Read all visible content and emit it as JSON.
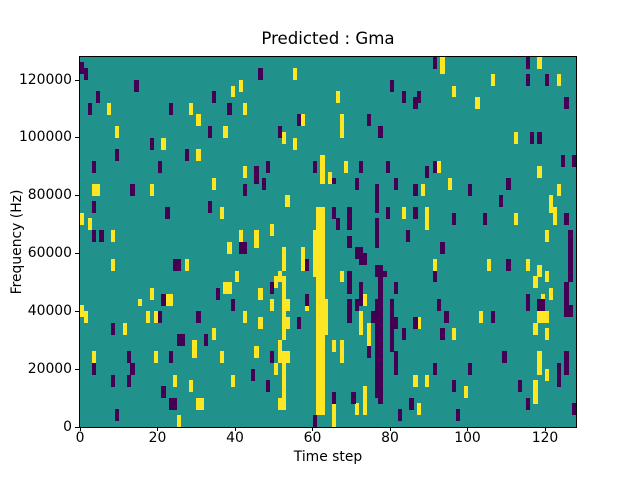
{
  "chart_data": {
    "type": "heatmap",
    "title": "Predicted : Gma",
    "xlabel": "Time step",
    "ylabel": "Frequency (Hz)",
    "xlim": [
      0,
      128
    ],
    "ylim": [
      0,
      128000
    ],
    "grid": {
      "cols": 128,
      "rows": 64,
      "hz_per_row": 2000
    },
    "x_ticks": {
      "values": [
        0,
        20,
        40,
        60,
        80,
        100,
        120
      ],
      "labels": [
        "0",
        "20",
        "40",
        "60",
        "80",
        "100",
        "120"
      ]
    },
    "y_ticks": {
      "values": [
        0,
        20000,
        40000,
        60000,
        80000,
        100000,
        120000
      ],
      "labels": [
        "0",
        "20000",
        "40000",
        "60000",
        "80000",
        "100000",
        "120000"
      ]
    },
    "legend_position": "none",
    "colormap": {
      "name": "viridis",
      "mid_background": "#21918c",
      "high": "#fde725",
      "low": "#440154"
    },
    "cell_runs": {
      "yellow": [
        [
          7,
          54,
          55
        ],
        [
          28,
          54,
          55
        ],
        [
          9,
          50,
          51
        ],
        [
          21,
          48,
          49
        ],
        [
          30,
          46,
          47
        ],
        [
          30,
          52,
          53
        ],
        [
          37,
          50,
          51
        ],
        [
          39,
          57,
          58
        ],
        [
          41,
          58,
          59
        ],
        [
          42,
          43,
          44
        ],
        [
          42,
          54,
          55
        ],
        [
          3,
          40,
          41
        ],
        [
          4,
          40,
          41
        ],
        [
          2,
          34,
          35
        ],
        [
          8,
          32,
          33
        ],
        [
          18,
          40,
          41
        ],
        [
          34,
          41,
          42
        ],
        [
          36,
          36,
          37
        ],
        [
          41,
          32,
          33
        ],
        [
          45,
          31,
          33
        ],
        [
          38,
          30,
          31
        ],
        [
          8,
          27,
          28
        ],
        [
          27,
          27,
          28
        ],
        [
          40,
          25,
          26
        ],
        [
          18,
          22,
          23
        ],
        [
          37,
          23,
          24
        ],
        [
          38,
          23,
          24
        ],
        [
          22,
          21,
          22
        ],
        [
          23,
          21,
          22
        ],
        [
          15,
          21,
          21
        ],
        [
          50,
          24,
          25
        ],
        [
          49,
          33,
          34
        ],
        [
          46,
          22,
          23
        ],
        [
          0,
          35,
          36
        ],
        [
          1,
          18,
          19
        ],
        [
          17,
          18,
          19
        ],
        [
          19,
          18,
          19
        ],
        [
          42,
          18,
          19
        ],
        [
          46,
          17,
          18
        ],
        [
          11,
          16,
          17
        ],
        [
          29,
          12,
          14
        ],
        [
          34,
          15,
          16
        ],
        [
          3,
          11,
          12
        ],
        [
          19,
          11,
          12
        ],
        [
          36,
          11,
          12
        ],
        [
          50,
          9,
          10
        ],
        [
          24,
          7,
          8
        ],
        [
          39,
          7,
          8
        ],
        [
          28,
          6,
          7
        ],
        [
          30,
          3,
          4
        ],
        [
          31,
          3,
          4
        ],
        [
          25,
          0,
          1
        ],
        [
          0,
          19,
          20
        ],
        [
          49,
          20,
          21
        ],
        [
          45,
          12,
          13
        ],
        [
          51,
          3,
          4
        ],
        [
          51,
          11,
          14
        ],
        [
          51,
          25,
          26
        ],
        [
          55,
          60,
          61
        ],
        [
          66,
          56,
          57
        ],
        [
          93,
          62,
          63
        ],
        [
          57,
          52,
          53
        ],
        [
          67,
          50,
          53
        ],
        [
          55,
          48,
          49
        ],
        [
          52,
          49,
          50
        ],
        [
          64,
          42,
          43
        ],
        [
          68,
          44,
          45
        ],
        [
          92,
          44,
          45
        ],
        [
          53,
          38,
          39
        ],
        [
          88,
          40,
          41
        ],
        [
          83,
          36,
          37
        ],
        [
          89,
          34,
          37
        ],
        [
          57,
          27,
          30
        ],
        [
          52,
          27,
          30
        ],
        [
          67,
          25,
          26
        ],
        [
          91,
          27,
          28
        ],
        [
          73,
          21,
          22
        ],
        [
          52,
          21,
          25
        ],
        [
          61,
          2,
          37
        ],
        [
          62,
          2,
          37
        ],
        [
          62,
          42,
          46
        ],
        [
          60,
          26,
          33
        ],
        [
          63,
          16,
          21
        ],
        [
          52,
          15,
          21
        ],
        [
          52,
          9,
          12
        ],
        [
          52,
          5,
          8
        ],
        [
          52,
          3,
          4
        ],
        [
          53,
          20,
          21
        ],
        [
          53,
          17,
          18
        ],
        [
          53,
          11,
          12
        ],
        [
          58,
          20,
          21
        ],
        [
          72,
          16,
          19
        ],
        [
          74,
          14,
          17
        ],
        [
          67,
          11,
          14
        ],
        [
          65,
          13,
          14
        ],
        [
          65,
          0,
          3
        ],
        [
          73,
          2,
          6
        ],
        [
          71,
          2,
          3
        ],
        [
          87,
          17,
          18
        ],
        [
          86,
          7,
          8
        ],
        [
          89,
          7,
          8
        ],
        [
          87,
          2,
          3
        ],
        [
          118,
          62,
          63
        ],
        [
          93,
          61,
          62
        ],
        [
          123,
          59,
          60
        ],
        [
          106,
          59,
          60
        ],
        [
          96,
          57,
          58
        ],
        [
          102,
          55,
          56
        ],
        [
          112,
          49,
          50
        ],
        [
          118,
          43,
          44
        ],
        [
          95,
          41,
          42
        ],
        [
          123,
          40,
          41
        ],
        [
          121,
          37,
          39
        ],
        [
          122,
          35,
          37
        ],
        [
          112,
          35,
          36
        ],
        [
          120,
          32,
          33
        ],
        [
          105,
          27,
          28
        ],
        [
          115,
          27,
          28
        ],
        [
          118,
          26,
          27
        ],
        [
          120,
          25,
          26
        ],
        [
          117,
          24,
          25
        ],
        [
          119,
          21,
          22
        ],
        [
          121,
          22,
          23
        ],
        [
          118,
          18,
          19
        ],
        [
          119,
          18,
          19
        ],
        [
          120,
          18,
          19
        ],
        [
          103,
          18,
          19
        ],
        [
          117,
          16,
          17
        ],
        [
          120,
          15,
          16
        ],
        [
          96,
          15,
          16
        ],
        [
          118,
          9,
          12
        ],
        [
          120,
          8,
          9
        ],
        [
          99,
          5,
          6
        ],
        [
          117,
          4,
          7
        ]
      ],
      "purple": [
        [
          0,
          61,
          62
        ],
        [
          1,
          60,
          61
        ],
        [
          14,
          58,
          59
        ],
        [
          4,
          56,
          57
        ],
        [
          2,
          54,
          55
        ],
        [
          23,
          54,
          55
        ],
        [
          34,
          56,
          57
        ],
        [
          38,
          54,
          55
        ],
        [
          33,
          50,
          51
        ],
        [
          18,
          48,
          49
        ],
        [
          9,
          46,
          47
        ],
        [
          27,
          46,
          47
        ],
        [
          3,
          44,
          45
        ],
        [
          20,
          44,
          45
        ],
        [
          46,
          60,
          61
        ],
        [
          3,
          37,
          38
        ],
        [
          13,
          40,
          41
        ],
        [
          42,
          40,
          41
        ],
        [
          33,
          37,
          38
        ],
        [
          22,
          36,
          37
        ],
        [
          3,
          32,
          33
        ],
        [
          5,
          32,
          33
        ],
        [
          41,
          30,
          31
        ],
        [
          42,
          30,
          31
        ],
        [
          24,
          27,
          28
        ],
        [
          25,
          27,
          28
        ],
        [
          35,
          22,
          23
        ],
        [
          21,
          21,
          22
        ],
        [
          49,
          23,
          24
        ],
        [
          45,
          42,
          44
        ],
        [
          48,
          44,
          45
        ],
        [
          51,
          50,
          51
        ],
        [
          47,
          41,
          42
        ],
        [
          20,
          18,
          19
        ],
        [
          30,
          18,
          19
        ],
        [
          39,
          20,
          21
        ],
        [
          8,
          16,
          17
        ],
        [
          25,
          14,
          15
        ],
        [
          26,
          14,
          15
        ],
        [
          32,
          14,
          15
        ],
        [
          12,
          11,
          12
        ],
        [
          23,
          11,
          12
        ],
        [
          3,
          9,
          10
        ],
        [
          13,
          9,
          10
        ],
        [
          8,
          7,
          8
        ],
        [
          12,
          7,
          8
        ],
        [
          21,
          5,
          6
        ],
        [
          23,
          3,
          4
        ],
        [
          24,
          3,
          4
        ],
        [
          9,
          1,
          2
        ],
        [
          44,
          8,
          9
        ],
        [
          49,
          11,
          12
        ],
        [
          48,
          6,
          7
        ],
        [
          80,
          58,
          59
        ],
        [
          91,
          62,
          63
        ],
        [
          83,
          56,
          57
        ],
        [
          86,
          55,
          56
        ],
        [
          87,
          56,
          57
        ],
        [
          56,
          52,
          53
        ],
        [
          74,
          52,
          53
        ],
        [
          77,
          50,
          51
        ],
        [
          60,
          44,
          45
        ],
        [
          72,
          44,
          45
        ],
        [
          79,
          44,
          45
        ],
        [
          91,
          44,
          45
        ],
        [
          89,
          43,
          44
        ],
        [
          65,
          42,
          42
        ],
        [
          71,
          41,
          42
        ],
        [
          81,
          41,
          42
        ],
        [
          76,
          37,
          41
        ],
        [
          86,
          40,
          41
        ],
        [
          65,
          36,
          37
        ],
        [
          69,
          34,
          37
        ],
        [
          79,
          36,
          37
        ],
        [
          86,
          36,
          37
        ],
        [
          66,
          34,
          35
        ],
        [
          76,
          31,
          35
        ],
        [
          84,
          32,
          33
        ],
        [
          69,
          31,
          32
        ],
        [
          71,
          29,
          30
        ],
        [
          72,
          28,
          30
        ],
        [
          73,
          28,
          29
        ],
        [
          58,
          27,
          28
        ],
        [
          76,
          26,
          27
        ],
        [
          77,
          25,
          27
        ],
        [
          78,
          26,
          26
        ],
        [
          81,
          23,
          24
        ],
        [
          91,
          25,
          26
        ],
        [
          69,
          23,
          26
        ],
        [
          72,
          21,
          24
        ],
        [
          77,
          21,
          24
        ],
        [
          58,
          21,
          22
        ],
        [
          56,
          17,
          18
        ],
        [
          69,
          18,
          21
        ],
        [
          71,
          20,
          21
        ],
        [
          75,
          18,
          19
        ],
        [
          74,
          12,
          13
        ],
        [
          76,
          5,
          21
        ],
        [
          77,
          4,
          21
        ],
        [
          80,
          13,
          21
        ],
        [
          81,
          9,
          12
        ],
        [
          81,
          17,
          18
        ],
        [
          83,
          15,
          16
        ],
        [
          86,
          17,
          18
        ],
        [
          91,
          9,
          10
        ],
        [
          82,
          1,
          2
        ],
        [
          70,
          4,
          5
        ],
        [
          65,
          4,
          5
        ],
        [
          60,
          0,
          1
        ],
        [
          92,
          20,
          21
        ],
        [
          85,
          3,
          4
        ],
        [
          115,
          62,
          63
        ],
        [
          115,
          59,
          60
        ],
        [
          120,
          59,
          60
        ],
        [
          125,
          55,
          56
        ],
        [
          116,
          49,
          50
        ],
        [
          118,
          49,
          50
        ],
        [
          124,
          45,
          46
        ],
        [
          127,
          45,
          46
        ],
        [
          110,
          41,
          42
        ],
        [
          100,
          40,
          41
        ],
        [
          108,
          38,
          39
        ],
        [
          96,
          35,
          36
        ],
        [
          104,
          35,
          36
        ],
        [
          125,
          35,
          36
        ],
        [
          126,
          25,
          33
        ],
        [
          93,
          30,
          31
        ],
        [
          110,
          27,
          28
        ],
        [
          115,
          21,
          22
        ],
        [
          125,
          21,
          24
        ],
        [
          115,
          20,
          21
        ],
        [
          118,
          20,
          21
        ],
        [
          119,
          20,
          21
        ],
        [
          125,
          19,
          20
        ],
        [
          126,
          19,
          20
        ],
        [
          106,
          18,
          19
        ],
        [
          94,
          18,
          19
        ],
        [
          93,
          15,
          16
        ],
        [
          109,
          11,
          12
        ],
        [
          125,
          9,
          12
        ],
        [
          123,
          7,
          10
        ],
        [
          100,
          9,
          10
        ],
        [
          96,
          6,
          7
        ],
        [
          113,
          6,
          7
        ],
        [
          115,
          3,
          4
        ],
        [
          97,
          1,
          2
        ],
        [
          127,
          2,
          3
        ]
      ]
    }
  }
}
